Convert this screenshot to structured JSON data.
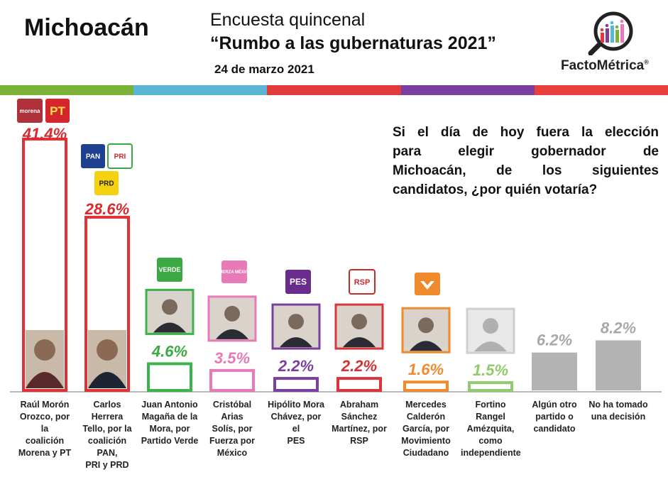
{
  "header": {
    "state": "Michoacán",
    "title_line1": "Encuesta quincenal",
    "title_line2": "“Rumbo a las gubernaturas 2021”",
    "date": "24 de marzo 2021",
    "brand": "FactoMétrica",
    "brand_mark": "®"
  },
  "colorbar": [
    "#7db23a",
    "#5bb6d6",
    "#e03a3c",
    "#7b3fa0",
    "#e8403a"
  ],
  "question": {
    "line1": "Si el día de hoy fuera la elección",
    "line2": "para elegir gobernador de",
    "line3": "Michoacán, de los siguientes",
    "line4": "candidatos, ¿por quién votaría?"
  },
  "party_logos": {
    "morena": "morena",
    "pt": "PT",
    "pan": "PAN",
    "pri": "PRI",
    "prd": "PRD",
    "verde": "VERDE",
    "fuerza": "FUERZA MÉXICO",
    "pes": "PES",
    "rsp": "RSP"
  },
  "chart_data": {
    "type": "bar",
    "ylim": [
      0,
      45
    ],
    "categories": [
      "Raúl Morón Orozco, por la coalición Morena y PT",
      "Carlos Herrera Tello, por la coalición PAN, PRI y PRD",
      "Juan Antonio Magaña de la Mora, por Partido Verde",
      "Cristóbal Arias Solís, por Fuerza por México",
      "Hipólito Mora Chávez, por el PES",
      "Abraham Sánchez Martínez, por RSP",
      "Mercedes Calderón García, por Movimiento Ciudadano",
      "Fortino Rangel Amézquita, como independiente",
      "Algún otro partido o candidato",
      "No ha tomado una decisión"
    ],
    "values": [
      41.4,
      28.6,
      4.6,
      3.5,
      2.2,
      2.2,
      1.6,
      1.5,
      6.2,
      8.2
    ],
    "value_labels": [
      "41.4%",
      "28.6%",
      "4.6%",
      "3.5%",
      "2.2%",
      "2.2%",
      "1.6%",
      "1.5%",
      "6.2%",
      "8.2%"
    ],
    "label_lines": [
      [
        "Raúl Morón",
        "Orozco, por la",
        "coalición",
        "Morena y PT"
      ],
      [
        "Carlos Herrera",
        "Tello, por la",
        "coalición PAN,",
        "PRI y PRD"
      ],
      [
        "Juan Antonio",
        "Magaña de la",
        "Mora, por",
        "Partido Verde"
      ],
      [
        "Cristóbal Arias",
        "Solís, por",
        "Fuerza por",
        "México"
      ],
      [
        "Hipólito Mora",
        "Chávez, por el",
        "PES"
      ],
      [
        "Abraham",
        "Sánchez",
        "Martínez, por",
        "RSP"
      ],
      [
        "Mercedes",
        "Calderón",
        "García, por",
        "Movimiento",
        "Ciudadano"
      ],
      [
        "Fortino Rangel",
        "Amézquita,",
        "como",
        "independiente"
      ],
      [
        "Algún otro",
        "partido o",
        "candidato"
      ],
      [
        "No ha tomado",
        "una decisión"
      ]
    ],
    "colors": [
      "#e03234",
      "#e03234",
      "#3bb44a",
      "#e97ab8",
      "#7b3fa0",
      "#d8363a",
      "#f08a2c",
      "#8fcb6c",
      "#b3b3b3",
      "#b3b3b3"
    ],
    "label_colors": [
      "#d82a2e",
      "#d82a2e",
      "#3aa944",
      "#e779b5",
      "#7a3ea0",
      "#d23235",
      "#f08a2c",
      "#8fcb6c",
      "#a8a8a8",
      "#a8a8a8"
    ]
  }
}
